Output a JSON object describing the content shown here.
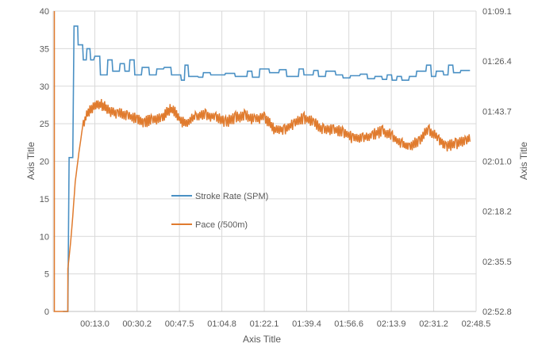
{
  "chart_data": {
    "type": "line",
    "x_axis_title": "Axis Title",
    "y_left_title": "Axis Title",
    "y_right_title": "Axis Title",
    "x_ticks": [
      "00:13.0",
      "00:30.2",
      "00:47.5",
      "01:04.8",
      "01:22.1",
      "01:39.4",
      "01:56.6",
      "02:13.9",
      "02:31.2",
      "02:48.5"
    ],
    "x_range_seconds": [
      -4,
      168.5
    ],
    "y_left_ticks": [
      "0",
      "5",
      "10",
      "15",
      "20",
      "25",
      "30",
      "35",
      "40"
    ],
    "y_left_range": [
      0,
      40
    ],
    "y_right_ticks": [
      "01:09.1",
      "01:26.4",
      "01:43.7",
      "02:01.0",
      "02:18.2",
      "02:35.5",
      "02:52.8"
    ],
    "y_right_range": [
      69.1,
      172.8
    ],
    "gridlines": true,
    "legend_position": "center-left",
    "series": [
      {
        "name": "Stroke Rate (SPM)",
        "axis": "left",
        "color": "#4A90C4",
        "step": true,
        "points": [
          [
            0,
            0
          ],
          [
            2,
            0
          ],
          [
            2.5,
            20.5
          ],
          [
            4,
            20.5
          ],
          [
            4.5,
            38
          ],
          [
            6,
            38
          ],
          [
            6.2,
            35.5
          ],
          [
            8,
            35.5
          ],
          [
            8.3,
            33.5
          ],
          [
            9.5,
            33.5
          ],
          [
            9.8,
            35
          ],
          [
            11,
            35
          ],
          [
            11.3,
            33.5
          ],
          [
            12.5,
            33.5
          ],
          [
            13,
            34
          ],
          [
            15,
            34
          ],
          [
            15.3,
            31.5
          ],
          [
            18,
            31.5
          ],
          [
            18.3,
            33.5
          ],
          [
            20,
            33.5
          ],
          [
            20.3,
            32
          ],
          [
            23,
            32
          ],
          [
            23.3,
            33
          ],
          [
            25,
            33
          ],
          [
            25.3,
            32
          ],
          [
            27,
            32
          ],
          [
            27.3,
            33.5
          ],
          [
            29,
            33.5
          ],
          [
            29.3,
            31.5
          ],
          [
            32,
            31.5
          ],
          [
            32.3,
            32.5
          ],
          [
            35,
            32.5
          ],
          [
            35.3,
            31.5
          ],
          [
            38,
            31.5
          ],
          [
            38.3,
            32.3
          ],
          [
            41,
            32.3
          ],
          [
            41.3,
            32.5
          ],
          [
            44,
            32.5
          ],
          [
            44.3,
            31.5
          ],
          [
            47,
            31.5
          ],
          [
            47.3,
            31.5
          ],
          [
            48,
            31.5
          ],
          [
            48.3,
            30.8
          ],
          [
            49.5,
            30.8
          ],
          [
            49.8,
            32.8
          ],
          [
            51,
            32.8
          ],
          [
            51.3,
            31.3
          ],
          [
            55,
            31.3
          ],
          [
            55.3,
            31.2
          ],
          [
            57,
            31.2
          ],
          [
            57.3,
            31.8
          ],
          [
            60,
            31.8
          ],
          [
            60.3,
            31.5
          ],
          [
            66,
            31.5
          ],
          [
            66.3,
            31.7
          ],
          [
            70,
            31.7
          ],
          [
            70.3,
            31.3
          ],
          [
            75,
            31.3
          ],
          [
            75.3,
            32
          ],
          [
            77,
            32
          ],
          [
            77.3,
            31.2
          ],
          [
            80,
            31.2
          ],
          [
            80.3,
            32.3
          ],
          [
            84,
            32.3
          ],
          [
            84.3,
            31.8
          ],
          [
            88,
            31.8
          ],
          [
            88.3,
            32.2
          ],
          [
            91,
            32.2
          ],
          [
            91.3,
            31.3
          ],
          [
            96,
            31.3
          ],
          [
            96.3,
            32.3
          ],
          [
            98,
            32.3
          ],
          [
            98.3,
            31.5
          ],
          [
            102,
            31.5
          ],
          [
            102.3,
            32.1
          ],
          [
            104,
            32.1
          ],
          [
            104.3,
            31.3
          ],
          [
            107,
            31.3
          ],
          [
            107.3,
            32.0
          ],
          [
            111,
            32.0
          ],
          [
            111.3,
            31.5
          ],
          [
            114,
            31.5
          ],
          [
            114.3,
            31.1
          ],
          [
            117,
            31.1
          ],
          [
            117.3,
            31.4
          ],
          [
            121,
            31.4
          ],
          [
            121.3,
            31.6
          ],
          [
            124,
            31.6
          ],
          [
            124.3,
            31.0
          ],
          [
            127,
            31.0
          ],
          [
            127.3,
            31.3
          ],
          [
            130,
            31.3
          ],
          [
            130.3,
            30.9
          ],
          [
            132,
            30.9
          ],
          [
            132.3,
            31.5
          ],
          [
            134,
            31.5
          ],
          [
            134.3,
            30.8
          ],
          [
            136,
            30.8
          ],
          [
            136.3,
            31.3
          ],
          [
            138,
            31.3
          ],
          [
            138.3,
            30.8
          ],
          [
            141,
            30.8
          ],
          [
            141.3,
            31.3
          ],
          [
            144,
            31.3
          ],
          [
            144.3,
            32.0
          ],
          [
            148,
            32.0
          ],
          [
            148.3,
            32.8
          ],
          [
            150,
            32.8
          ],
          [
            150.3,
            31.3
          ],
          [
            152,
            31.3
          ],
          [
            152.3,
            32.0
          ],
          [
            155,
            32.0
          ],
          [
            155.3,
            31.5
          ],
          [
            157,
            31.5
          ],
          [
            157.3,
            32.8
          ],
          [
            159,
            32.8
          ],
          [
            159.3,
            31.8
          ],
          [
            162,
            31.8
          ],
          [
            162.3,
            32.1
          ],
          [
            166,
            32.1
          ]
        ]
      },
      {
        "name": "Pace (/500m)",
        "axis": "right",
        "color": "#E07B2E",
        "anchors": [
          [
            -3.5,
            172.8
          ],
          [
            -3.5,
            69.1
          ],
          [
            -3.5,
            172.8
          ],
          [
            2,
            172.8
          ],
          [
            2,
            158
          ],
          [
            3,
            150
          ],
          [
            4,
            140
          ],
          [
            5,
            128
          ],
          [
            6.5,
            118
          ],
          [
            8,
            109
          ],
          [
            10,
            104
          ],
          [
            12,
            102.5
          ],
          [
            14,
            101.5
          ],
          [
            16,
            101.5
          ],
          [
            18,
            103
          ],
          [
            22,
            104.5
          ],
          [
            26,
            105
          ],
          [
            30,
            106.5
          ],
          [
            33,
            107.5
          ],
          [
            36,
            106.5
          ],
          [
            40,
            106.5
          ],
          [
            42,
            104
          ],
          [
            44,
            103
          ],
          [
            46,
            104
          ],
          [
            48,
            107
          ],
          [
            50,
            108
          ],
          [
            54,
            105.5
          ],
          [
            58,
            105
          ],
          [
            62,
            105.5
          ],
          [
            66,
            107.5
          ],
          [
            70,
            106
          ],
          [
            74,
            105
          ],
          [
            78,
            106.5
          ],
          [
            82,
            105.5
          ],
          [
            84,
            107.5
          ],
          [
            86,
            110
          ],
          [
            90,
            110
          ],
          [
            94,
            108
          ],
          [
            98,
            106
          ],
          [
            102,
            107.5
          ],
          [
            106,
            110
          ],
          [
            110,
            110
          ],
          [
            114,
            110.5
          ],
          [
            118,
            113
          ],
          [
            122,
            113
          ],
          [
            126,
            112
          ],
          [
            130,
            110.5
          ],
          [
            134,
            112
          ],
          [
            138,
            115
          ],
          [
            141,
            116
          ],
          [
            145,
            114
          ],
          [
            149,
            110
          ],
          [
            153,
            113
          ],
          [
            156,
            116
          ],
          [
            160,
            115
          ],
          [
            164,
            114
          ],
          [
            166,
            113
          ]
        ],
        "jitter": true
      }
    ]
  }
}
